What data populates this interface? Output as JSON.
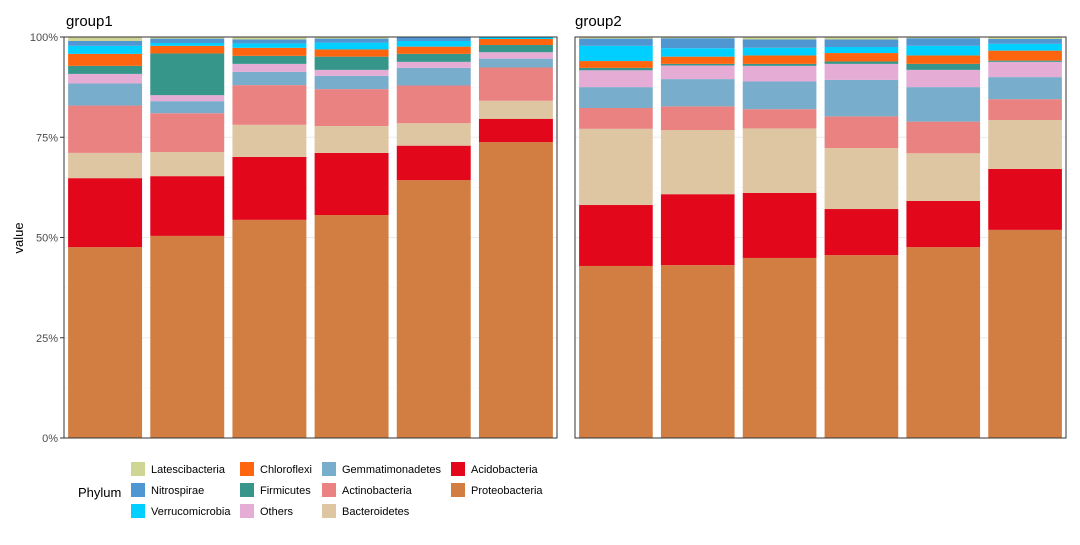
{
  "chart_data": {
    "type": "bar",
    "stacked": true,
    "ylabel": "value",
    "xlabel": "",
    "ylim": [
      0,
      100
    ],
    "yticks": [
      "0%",
      "25%",
      "50%",
      "75%",
      "100%"
    ],
    "grid": true,
    "legend": {
      "title": "Phylum",
      "placement": "bottom",
      "entries": [
        "Latescibacteria",
        "Nitrospirae",
        "Verrucomicrobia",
        "Chloroflexi",
        "Firmicutes",
        "Others",
        "Gemmatimonadetes",
        "Actinobacteria",
        "Bacteroidetes",
        "Acidobacteria",
        "Proteobacteria"
      ]
    },
    "colors": {
      "Latescibacteria": "#cfd592",
      "Nitrospirae": "#4f97d3",
      "Verrucomicrobia": "#00cfff",
      "Chloroflexi": "#ff650f",
      "Firmicutes": "#36968a",
      "Others": "#e5acd6",
      "Gemmatimonadetes": "#78aecc",
      "Actinobacteria": "#eb8282",
      "Bacteroidetes": "#dfc6a3",
      "Acidobacteria": "#e3071b",
      "Proteobacteria": "#d27e42"
    },
    "stack_order_bottom_up": [
      "Proteobacteria",
      "Acidobacteria",
      "Bacteroidetes",
      "Actinobacteria",
      "Gemmatimonadetes",
      "Others",
      "Firmicutes",
      "Chloroflexi",
      "Verrucomicrobia",
      "Nitrospirae",
      "Latescibacteria"
    ],
    "panels": [
      {
        "title": "group1",
        "bars": [
          {
            "Proteobacteria": 47.6,
            "Acidobacteria": 17.2,
            "Bacteroidetes": 6.3,
            "Actinobacteria": 11.8,
            "Gemmatimonadetes": 5.5,
            "Others": 2.4,
            "Firmicutes": 2.0,
            "Chloroflexi": 3.0,
            "Verrucomicrobia": 2.0,
            "Nitrospirae": 1.2,
            "Latescibacteria": 1.0
          },
          {
            "Proteobacteria": 50.4,
            "Acidobacteria": 14.9,
            "Bacteroidetes": 6.0,
            "Actinobacteria": 9.7,
            "Gemmatimonadetes": 3.0,
            "Others": 1.5,
            "Firmicutes": 10.4,
            "Chloroflexi": 1.9,
            "Verrucomicrobia": 0.7,
            "Nitrospirae": 1.1,
            "Latescibacteria": 0.4
          },
          {
            "Proteobacteria": 54.4,
            "Acidobacteria": 15.7,
            "Bacteroidetes": 8.0,
            "Actinobacteria": 9.9,
            "Gemmatimonadetes": 3.3,
            "Others": 2.0,
            "Firmicutes": 2.0,
            "Chloroflexi": 2.0,
            "Verrucomicrobia": 1.1,
            "Nitrospirae": 1.0,
            "Latescibacteria": 0.6
          },
          {
            "Proteobacteria": 55.6,
            "Acidobacteria": 15.5,
            "Bacteroidetes": 6.7,
            "Actinobacteria": 9.2,
            "Gemmatimonadetes": 3.3,
            "Others": 1.5,
            "Firmicutes": 3.3,
            "Chloroflexi": 1.8,
            "Verrucomicrobia": 1.7,
            "Nitrospirae": 1.0,
            "Latescibacteria": 0.4
          },
          {
            "Proteobacteria": 64.3,
            "Acidobacteria": 8.6,
            "Bacteroidetes": 5.6,
            "Actinobacteria": 9.4,
            "Gemmatimonadetes": 4.4,
            "Others": 1.5,
            "Firmicutes": 2.0,
            "Chloroflexi": 1.8,
            "Verrucomicrobia": 1.4,
            "Nitrospirae": 1.0,
            "Latescibacteria": 0.0
          },
          {
            "Proteobacteria": 73.8,
            "Acidobacteria": 5.8,
            "Bacteroidetes": 4.5,
            "Actinobacteria": 8.3,
            "Gemmatimonadetes": 2.2,
            "Others": 1.6,
            "Firmicutes": 1.8,
            "Chloroflexi": 1.5,
            "Verrucomicrobia": 0.5,
            "Nitrospirae": 0.0,
            "Latescibacteria": 0.0
          }
        ]
      },
      {
        "title": "group2",
        "bars": [
          {
            "Proteobacteria": 42.9,
            "Acidobacteria": 15.2,
            "Bacteroidetes": 19.0,
            "Actinobacteria": 5.2,
            "Gemmatimonadetes": 5.2,
            "Others": 4.2,
            "Firmicutes": 0.6,
            "Chloroflexi": 1.7,
            "Verrucomicrobia": 3.8,
            "Nitrospirae": 1.8,
            "Latescibacteria": 0.4
          },
          {
            "Proteobacteria": 43.1,
            "Acidobacteria": 17.7,
            "Bacteroidetes": 16.0,
            "Actinobacteria": 5.9,
            "Gemmatimonadetes": 6.8,
            "Others": 3.4,
            "Firmicutes": 0.4,
            "Chloroflexi": 1.8,
            "Verrucomicrobia": 2.1,
            "Nitrospirae": 2.5,
            "Latescibacteria": 0.3
          },
          {
            "Proteobacteria": 44.9,
            "Acidobacteria": 16.2,
            "Bacteroidetes": 16.1,
            "Actinobacteria": 4.8,
            "Gemmatimonadetes": 6.9,
            "Others": 3.9,
            "Firmicutes": 0.5,
            "Chloroflexi": 2.1,
            "Verrucomicrobia": 1.9,
            "Nitrospirae": 2.1,
            "Latescibacteria": 0.6
          },
          {
            "Proteobacteria": 45.6,
            "Acidobacteria": 11.5,
            "Bacteroidetes": 15.2,
            "Actinobacteria": 7.9,
            "Gemmatimonadetes": 9.1,
            "Others": 4.0,
            "Firmicutes": 0.6,
            "Chloroflexi": 2.1,
            "Verrucomicrobia": 1.5,
            "Nitrospirae": 1.9,
            "Latescibacteria": 0.6
          },
          {
            "Proteobacteria": 47.6,
            "Acidobacteria": 11.5,
            "Bacteroidetes": 11.9,
            "Actinobacteria": 7.9,
            "Gemmatimonadetes": 8.6,
            "Others": 4.3,
            "Firmicutes": 1.5,
            "Chloroflexi": 2.1,
            "Verrucomicrobia": 2.4,
            "Nitrospirae": 1.9,
            "Latescibacteria": 0.3
          },
          {
            "Proteobacteria": 51.9,
            "Acidobacteria": 15.2,
            "Bacteroidetes": 12.2,
            "Actinobacteria": 5.2,
            "Gemmatimonadetes": 5.5,
            "Others": 3.8,
            "Firmicutes": 0.3,
            "Chloroflexi": 2.5,
            "Verrucomicrobia": 1.7,
            "Nitrospirae": 1.2,
            "Latescibacteria": 0.5
          }
        ]
      }
    ]
  }
}
